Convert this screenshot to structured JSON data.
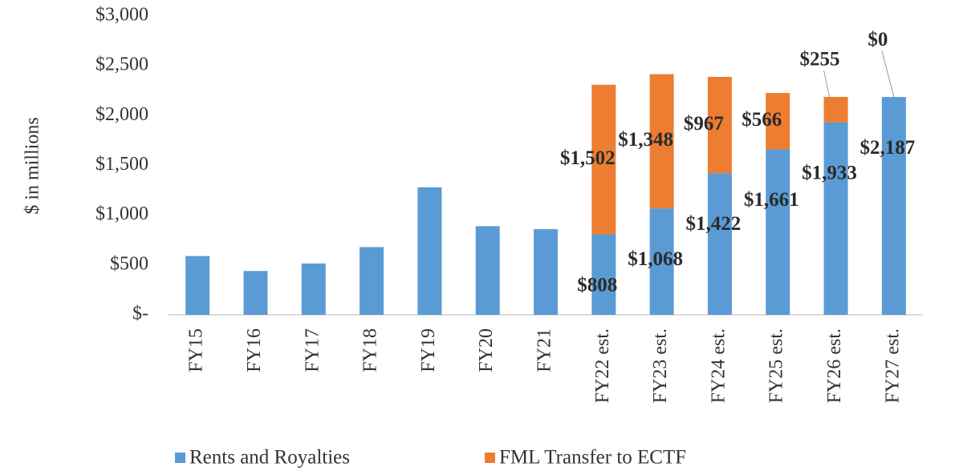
{
  "chart_data": {
    "type": "stacked_bar",
    "ylabel": "$ in millions",
    "categories": [
      "FY15",
      "FY16",
      "FY17",
      "FY18",
      "FY19",
      "FY20",
      "FY21",
      "FY22 est.",
      "FY23 est.",
      "FY24 est.",
      "FY25 est.",
      "FY26 est.",
      "FY27 est."
    ],
    "series": [
      {
        "name": "Rents and Royalties",
        "color": "#5b9bd5",
        "values": [
          590,
          440,
          515,
          680,
          1280,
          890,
          860,
          808,
          1068,
          1422,
          1661,
          1933,
          2187
        ],
        "value_labels": [
          null,
          null,
          null,
          null,
          null,
          null,
          null,
          "$808",
          "$1,068",
          "$1,422",
          "$1,661",
          "$1,933",
          "$2,187"
        ]
      },
      {
        "name": "FML Transfer to ECTF",
        "color": "#ed7d31",
        "values": [
          null,
          null,
          null,
          null,
          null,
          null,
          null,
          1502,
          1348,
          967,
          566,
          255,
          0
        ],
        "value_labels": [
          null,
          null,
          null,
          null,
          null,
          null,
          null,
          "$1,502",
          "$1,348",
          "$967",
          "$566",
          "$255",
          "$0"
        ]
      }
    ],
    "ylim": [
      0,
      3000
    ],
    "yticks": [
      {
        "value": 0,
        "label": "$-"
      },
      {
        "value": 500,
        "label": "$500"
      },
      {
        "value": 1000,
        "label": "$1,000"
      },
      {
        "value": 1500,
        "label": "$1,500"
      },
      {
        "value": 2000,
        "label": "$2,000"
      },
      {
        "value": 2500,
        "label": "$2,500"
      },
      {
        "value": 3000,
        "label": "$3,000"
      }
    ],
    "grid": false
  }
}
